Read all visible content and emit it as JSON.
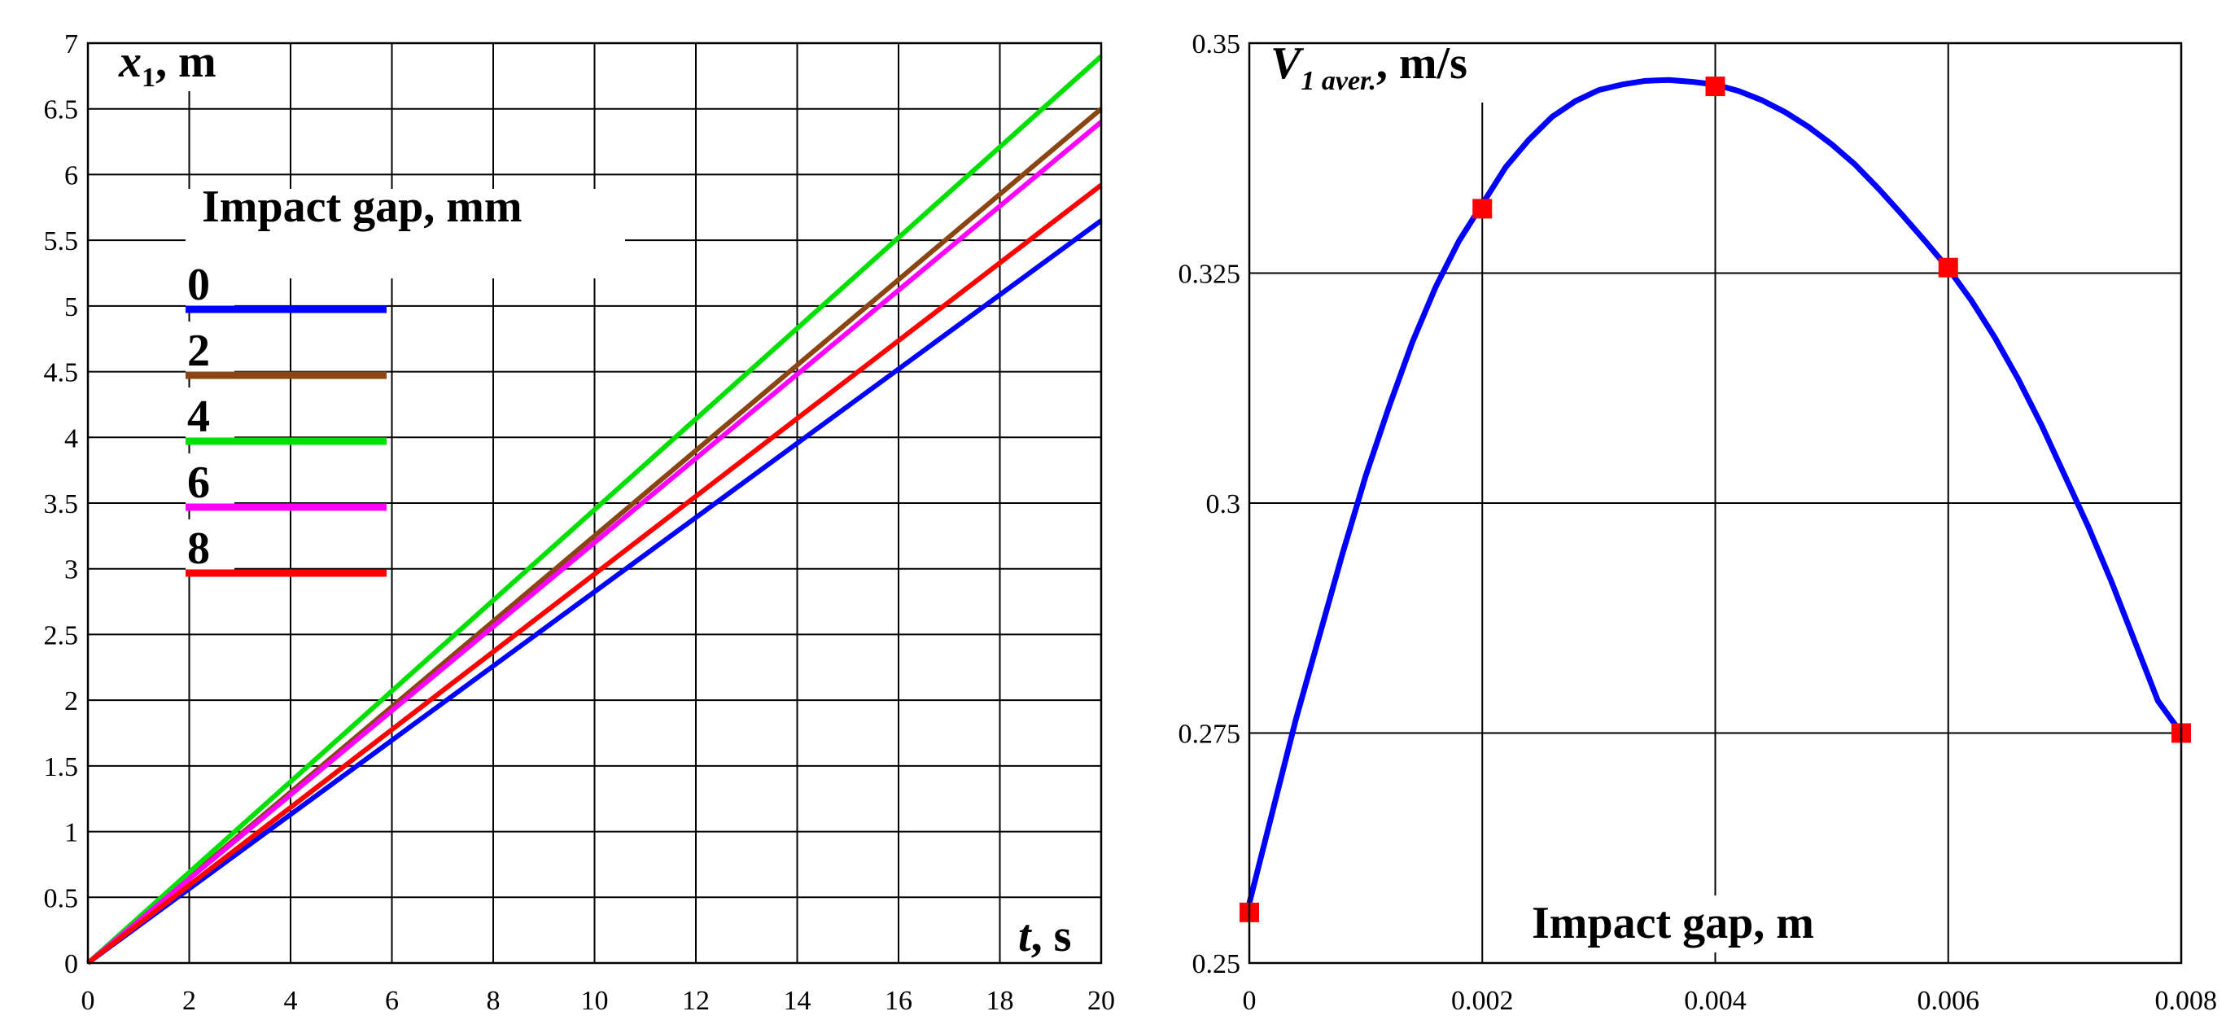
{
  "chart_data": [
    {
      "type": "line",
      "xlabel": "t",
      "xlabel_unit": ", s",
      "ylabel": "x",
      "ylabel_sub": "1",
      "ylabel_unit": ", m",
      "xlim": [
        0,
        20
      ],
      "ylim": [
        0,
        7
      ],
      "x_ticks": [
        "0",
        "2",
        "4",
        "6",
        "8",
        "10",
        "12",
        "14",
        "16",
        "18",
        "20"
      ],
      "y_ticks": [
        "0",
        "0.5",
        "1",
        "1.5",
        "2",
        "2.5",
        "3",
        "3.5",
        "4",
        "4.5",
        "5",
        "5.5",
        "6",
        "6.5",
        "7"
      ],
      "grid": true,
      "legend_title": "Impact gap, mm",
      "legend_placement": "upper-left",
      "series": [
        {
          "name": "0",
          "color": "#0000ff",
          "x": [
            0,
            20
          ],
          "y": [
            0,
            5.65
          ]
        },
        {
          "name": "2",
          "color": "#8b4513",
          "x": [
            0,
            20
          ],
          "y": [
            0,
            6.5
          ]
        },
        {
          "name": "4",
          "color": "#00e000",
          "x": [
            0,
            20
          ],
          "y": [
            0,
            6.9
          ]
        },
        {
          "name": "6",
          "color": "#ff00ff",
          "x": [
            0,
            20
          ],
          "y": [
            0,
            6.4
          ]
        },
        {
          "name": "8",
          "color": "#ff0000",
          "x": [
            0,
            20
          ],
          "y": [
            0,
            5.92
          ]
        }
      ]
    },
    {
      "type": "line",
      "xlabel": "Impact gap, m",
      "ylabel": "V",
      "ylabel_sub": "1 aver.",
      "ylabel_unit": ", m/s",
      "xlim": [
        0,
        0.008
      ],
      "ylim": [
        0.25,
        0.35
      ],
      "x_ticks": [
        "0",
        "0.002",
        "0.004",
        "0.006",
        "0.008"
      ],
      "y_ticks": [
        "0.25",
        "0.275",
        "0.3",
        "0.325",
        "0.35"
      ],
      "grid": true,
      "series": [
        {
          "color": "#0000ff",
          "x": [
            0,
            0.0002,
            0.0004,
            0.0006,
            0.0008,
            0.001,
            0.0012,
            0.0014,
            0.0016,
            0.0018,
            0.002,
            0.0022,
            0.0024,
            0.0026,
            0.0028,
            0.003,
            0.0032,
            0.0034,
            0.0036,
            0.0038,
            0.004,
            0.0042,
            0.0044,
            0.0046,
            0.0048,
            0.005,
            0.0052,
            0.0054,
            0.0056,
            0.0058,
            0.006,
            0.0062,
            0.0064,
            0.0066,
            0.0068,
            0.007,
            0.0072,
            0.0074,
            0.0076,
            0.0078,
            0.008
          ],
          "y": [
            0.2565,
            0.2665,
            0.2765,
            0.2855,
            0.2945,
            0.303,
            0.3105,
            0.3175,
            0.3235,
            0.3285,
            0.3325,
            0.3365,
            0.3395,
            0.342,
            0.3437,
            0.3449,
            0.3455,
            0.3459,
            0.346,
            0.3458,
            0.3455,
            0.3448,
            0.3438,
            0.3425,
            0.3409,
            0.339,
            0.3368,
            0.3342,
            0.3314,
            0.3285,
            0.3255,
            0.322,
            0.318,
            0.3135,
            0.3085,
            0.303,
            0.2975,
            0.2915,
            0.285,
            0.2785,
            0.275
          ]
        }
      ],
      "markers": {
        "color": "#ff0000",
        "x": [
          0,
          0.002,
          0.004,
          0.006,
          0.008
        ],
        "y": [
          0.2555,
          0.332,
          0.3453,
          0.3256,
          0.275
        ]
      }
    }
  ]
}
